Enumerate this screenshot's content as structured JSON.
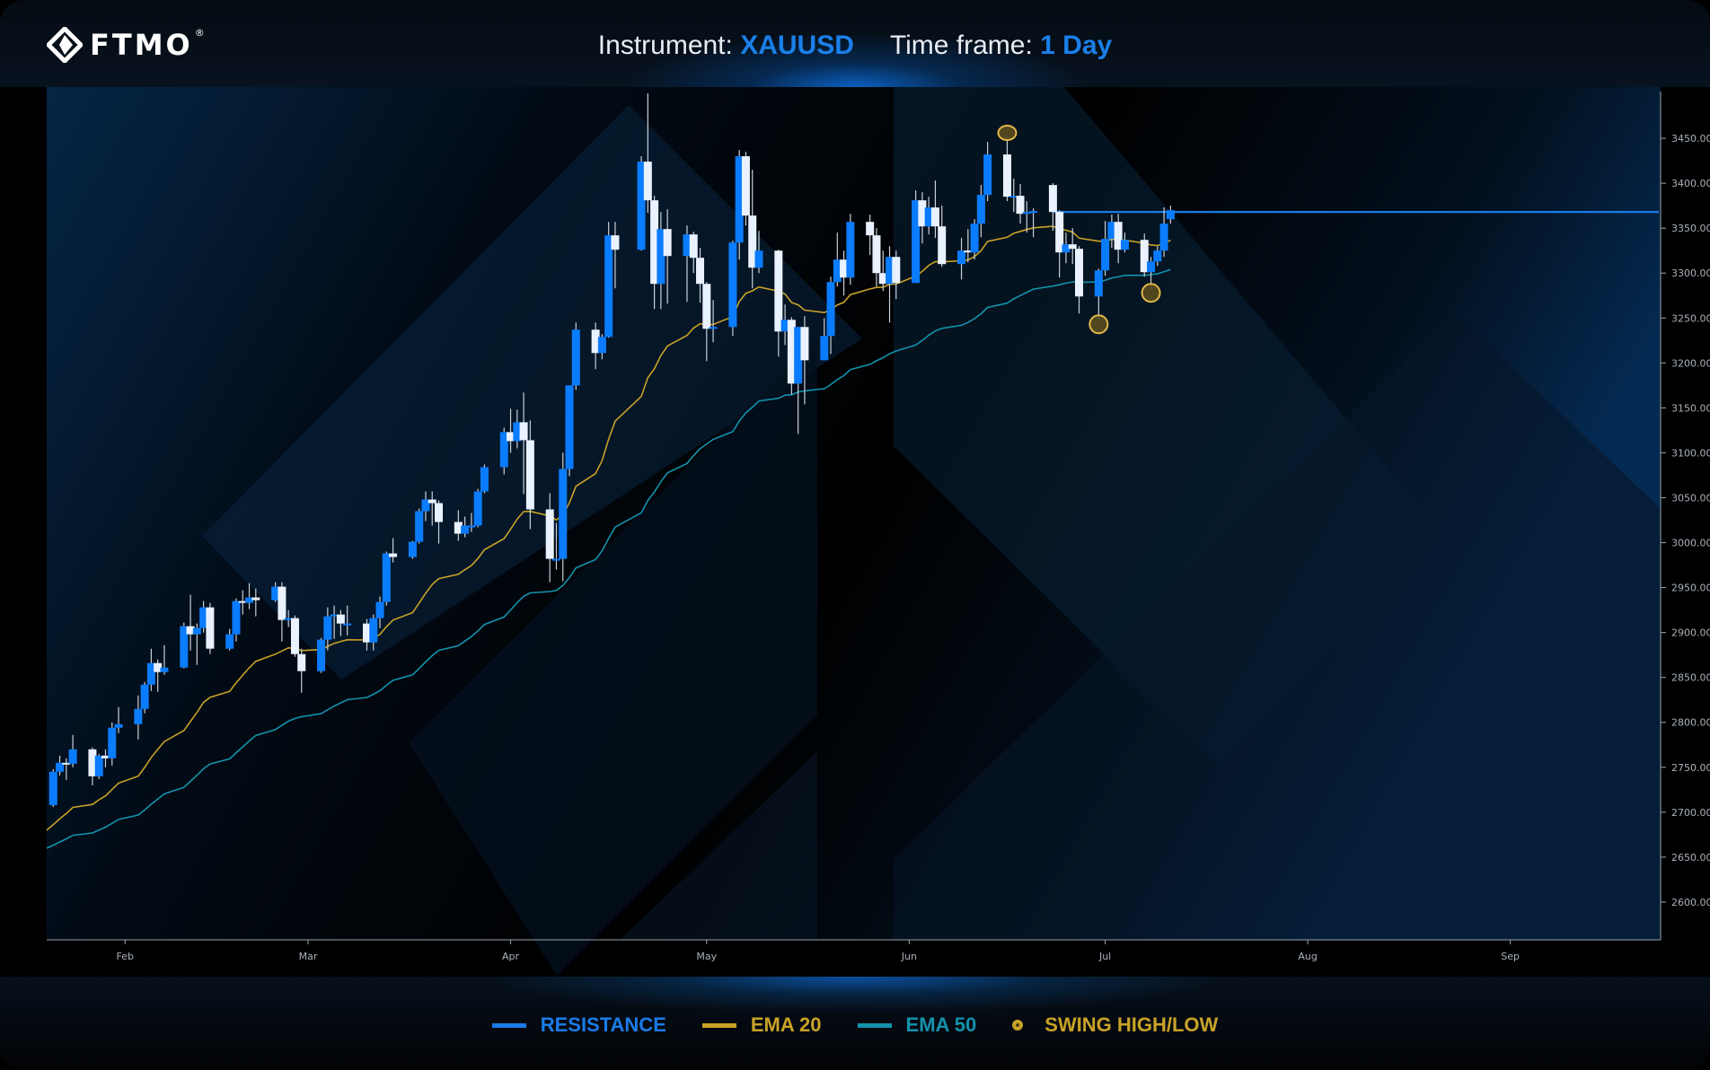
{
  "header": {
    "logo": "FTMO",
    "instrument_label": "Instrument: ",
    "instrument_value": "XAUUSD",
    "timeframe_label": "Time frame: ",
    "timeframe_value": "1 Day"
  },
  "legend": [
    {
      "label": "RESISTANCE",
      "color": "#1a7be8",
      "icon": "line"
    },
    {
      "label": "EMA 20",
      "color": "#c9a227",
      "icon": "line"
    },
    {
      "label": "EMA 50",
      "color": "#1392ad",
      "icon": "line"
    },
    {
      "label": "SWING HIGH/LOW",
      "color": "#c9a227",
      "icon": "circle"
    }
  ],
  "chart_data": {
    "type": "candlestick",
    "instrument": "XAUUSD",
    "timeframe": "1 Day",
    "xlim": [
      "2025-01-20",
      "2025-09-24"
    ],
    "ylim": [
      2558,
      3507
    ],
    "grid": false,
    "x_ticks": [
      {
        "label": "Feb",
        "date": "2025-02-01"
      },
      {
        "label": "Mar",
        "date": "2025-03-01"
      },
      {
        "label": "Apr",
        "date": "2025-04-01"
      },
      {
        "label": "May",
        "date": "2025-05-01"
      },
      {
        "label": "Jun",
        "date": "2025-06-01"
      },
      {
        "label": "Jul",
        "date": "2025-07-01"
      },
      {
        "label": "Aug",
        "date": "2025-08-01"
      },
      {
        "label": "Sep",
        "date": "2025-09-01"
      }
    ],
    "y_ticks": [
      "3450.00",
      "3400.00",
      "3350.00",
      "3300.00",
      "3250.00",
      "3200.00",
      "3150.00",
      "3100.00",
      "3050.00",
      "3000.00",
      "2950.00",
      "2900.00",
      "2850.00",
      "2800.00",
      "2750.00",
      "2700.00",
      "2650.00",
      "2600.00"
    ],
    "colors": {
      "up": "#0a7cff",
      "down": "#eaf2ff",
      "wick": "#c8d0da",
      "resistance": "#1a7be8",
      "ema20": "#c9a227",
      "ema50": "#1392ad",
      "swing": "#c9a227"
    },
    "candle_fields": [
      "date",
      "open",
      "high",
      "low",
      "close"
    ],
    "candles": [
      [
        "2025-01-21",
        2708,
        2748,
        2706,
        2745
      ],
      [
        "2025-01-22",
        2745,
        2763,
        2741,
        2755
      ],
      [
        "2025-01-23",
        2755,
        2760,
        2736,
        2754
      ],
      [
        "2025-01-24",
        2754,
        2786,
        2750,
        2770
      ],
      [
        "2025-01-27",
        2770,
        2772,
        2730,
        2740
      ],
      [
        "2025-01-28",
        2740,
        2765,
        2737,
        2763
      ],
      [
        "2025-01-29",
        2763,
        2770,
        2750,
        2760
      ],
      [
        "2025-01-30",
        2760,
        2800,
        2752,
        2794
      ],
      [
        "2025-01-31",
        2794,
        2817,
        2788,
        2798
      ],
      [
        "2025-02-03",
        2798,
        2830,
        2781,
        2815
      ],
      [
        "2025-02-04",
        2815,
        2845,
        2810,
        2842
      ],
      [
        "2025-02-05",
        2842,
        2882,
        2835,
        2866
      ],
      [
        "2025-02-06",
        2866,
        2870,
        2834,
        2856
      ],
      [
        "2025-02-07",
        2856,
        2886,
        2853,
        2861
      ],
      [
        "2025-02-10",
        2861,
        2911,
        2860,
        2907
      ],
      [
        "2025-02-11",
        2907,
        2942,
        2880,
        2898
      ],
      [
        "2025-02-12",
        2898,
        2910,
        2864,
        2905
      ],
      [
        "2025-02-13",
        2905,
        2935,
        2900,
        2928
      ],
      [
        "2025-02-14",
        2928,
        2933,
        2876,
        2882
      ],
      [
        "2025-02-17",
        2882,
        2904,
        2880,
        2898
      ],
      [
        "2025-02-18",
        2898,
        2938,
        2890,
        2935
      ],
      [
        "2025-02-19",
        2935,
        2947,
        2920,
        2933
      ],
      [
        "2025-02-20",
        2933,
        2955,
        2926,
        2939
      ],
      [
        "2025-02-21",
        2939,
        2949,
        2918,
        2936
      ],
      [
        "2025-02-24",
        2936,
        2956,
        2934,
        2951
      ],
      [
        "2025-02-25",
        2951,
        2956,
        2890,
        2914
      ],
      [
        "2025-02-26",
        2914,
        2925,
        2906,
        2916
      ],
      [
        "2025-02-27",
        2916,
        2919,
        2873,
        2876
      ],
      [
        "2025-02-28",
        2876,
        2882,
        2833,
        2857
      ],
      [
        "2025-03-03",
        2857,
        2894,
        2855,
        2892
      ],
      [
        "2025-03-04",
        2892,
        2928,
        2880,
        2918
      ],
      [
        "2025-03-05",
        2918,
        2930,
        2893,
        2920
      ],
      [
        "2025-03-06",
        2920,
        2925,
        2896,
        2910
      ],
      [
        "2025-03-07",
        2910,
        2930,
        2897,
        2910
      ],
      [
        "2025-03-10",
        2910,
        2915,
        2880,
        2889
      ],
      [
        "2025-03-11",
        2889,
        2920,
        2880,
        2916
      ],
      [
        "2025-03-12",
        2916,
        2940,
        2905,
        2934
      ],
      [
        "2025-03-13",
        2934,
        2990,
        2930,
        2988
      ],
      [
        "2025-03-14",
        2988,
        3005,
        2978,
        2984
      ],
      [
        "2025-03-17",
        2984,
        3002,
        2982,
        3001
      ],
      [
        "2025-03-18",
        3001,
        3038,
        2999,
        3035
      ],
      [
        "2025-03-19",
        3035,
        3057,
        3024,
        3048
      ],
      [
        "2025-03-20",
        3048,
        3057,
        3019,
        3044
      ],
      [
        "2025-03-21",
        3044,
        3047,
        2999,
        3023
      ],
      [
        "2025-03-24",
        3023,
        3036,
        3002,
        3010
      ],
      [
        "2025-03-25",
        3010,
        3029,
        3006,
        3019
      ],
      [
        "2025-03-26",
        3019,
        3033,
        3012,
        3019
      ],
      [
        "2025-03-27",
        3019,
        3060,
        3017,
        3057
      ],
      [
        "2025-03-28",
        3057,
        3087,
        3055,
        3084
      ],
      [
        "2025-03-31",
        3084,
        3128,
        3076,
        3123
      ],
      [
        "2025-04-01",
        3123,
        3149,
        3100,
        3113
      ],
      [
        "2025-04-02",
        3113,
        3148,
        3105,
        3134
      ],
      [
        "2025-04-03",
        3134,
        3167,
        3054,
        3114
      ],
      [
        "2025-04-04",
        3114,
        3136,
        3015,
        3037
      ],
      [
        "2025-04-07",
        3037,
        3055,
        2956,
        2982
      ],
      [
        "2025-04-08",
        2982,
        3022,
        2970,
        2982
      ],
      [
        "2025-04-09",
        2982,
        3100,
        2957,
        3082
      ],
      [
        "2025-04-10",
        3082,
        3175,
        3074,
        3175
      ],
      [
        "2025-04-11",
        3175,
        3245,
        3170,
        3237
      ],
      [
        "2025-04-14",
        3237,
        3245,
        3193,
        3211
      ],
      [
        "2025-04-15",
        3211,
        3232,
        3204,
        3229
      ],
      [
        "2025-04-16",
        3229,
        3357,
        3228,
        3342
      ],
      [
        "2025-04-17",
        3342,
        3357,
        3283,
        3326
      ],
      [
        "2025-04-21",
        3326,
        3430,
        3325,
        3424
      ],
      [
        "2025-04-22",
        3424,
        3500,
        3367,
        3381
      ],
      [
        "2025-04-23",
        3381,
        3386,
        3260,
        3288
      ],
      [
        "2025-04-24",
        3288,
        3368,
        3260,
        3349
      ],
      [
        "2025-04-25",
        3349,
        3371,
        3266,
        3319
      ],
      [
        "2025-04-28",
        3319,
        3353,
        3268,
        3343
      ],
      [
        "2025-04-29",
        3343,
        3346,
        3300,
        3317
      ],
      [
        "2025-04-30",
        3317,
        3328,
        3267,
        3288
      ],
      [
        "2025-05-01",
        3288,
        3290,
        3202,
        3238
      ],
      [
        "2025-05-02",
        3238,
        3270,
        3223,
        3240
      ],
      [
        "2025-05-05",
        3240,
        3336,
        3230,
        3334
      ],
      [
        "2025-05-06",
        3334,
        3437,
        3315,
        3430
      ],
      [
        "2025-05-07",
        3430,
        3435,
        3353,
        3364
      ],
      [
        "2025-05-08",
        3364,
        3415,
        3283,
        3306
      ],
      [
        "2025-05-09",
        3306,
        3347,
        3300,
        3325
      ],
      [
        "2025-05-12",
        3325,
        3326,
        3207,
        3235
      ],
      [
        "2025-05-13",
        3235,
        3265,
        3220,
        3248
      ],
      [
        "2025-05-14",
        3248,
        3251,
        3165,
        3177
      ],
      [
        "2025-05-15",
        3177,
        3240,
        3121,
        3240
      ],
      [
        "2025-05-16",
        3240,
        3252,
        3154,
        3203
      ],
      [
        "2025-05-19",
        3203,
        3250,
        3205,
        3230
      ],
      [
        "2025-05-20",
        3230,
        3296,
        3210,
        3290
      ],
      [
        "2025-05-21",
        3290,
        3345,
        3285,
        3315
      ],
      [
        "2025-05-22",
        3315,
        3325,
        3275,
        3295
      ],
      [
        "2025-05-23",
        3295,
        3366,
        3287,
        3357
      ],
      [
        "2025-05-26",
        3357,
        3365,
        3320,
        3342
      ],
      [
        "2025-05-27",
        3342,
        3350,
        3285,
        3300
      ],
      [
        "2025-05-28",
        3300,
        3325,
        3280,
        3288
      ],
      [
        "2025-05-29",
        3288,
        3330,
        3245,
        3318
      ],
      [
        "2025-05-30",
        3318,
        3325,
        3271,
        3289
      ],
      [
        "2025-06-02",
        3289,
        3392,
        3289,
        3381
      ],
      [
        "2025-06-03",
        3381,
        3390,
        3333,
        3352
      ],
      [
        "2025-06-04",
        3352,
        3385,
        3343,
        3373
      ],
      [
        "2025-06-05",
        3373,
        3403,
        3339,
        3352
      ],
      [
        "2025-06-06",
        3352,
        3375,
        3307,
        3310
      ],
      [
        "2025-06-09",
        3310,
        3339,
        3293,
        3325
      ],
      [
        "2025-06-10",
        3325,
        3349,
        3312,
        3323
      ],
      [
        "2025-06-11",
        3323,
        3360,
        3315,
        3355
      ],
      [
        "2025-06-12",
        3355,
        3398,
        3340,
        3387
      ],
      [
        "2025-06-13",
        3387,
        3446,
        3380,
        3432
      ],
      [
        "2025-06-16",
        3432,
        3452,
        3380,
        3385
      ],
      [
        "2025-06-17",
        3385,
        3405,
        3368,
        3386
      ],
      [
        "2025-06-18",
        3386,
        3399,
        3355,
        3366
      ],
      [
        "2025-06-19",
        3366,
        3380,
        3345,
        3368
      ],
      [
        "2025-06-20",
        3368,
        3372,
        3340,
        3369
      ],
      [
        "2025-06-23",
        3398,
        3400,
        3347,
        3368
      ],
      [
        "2025-06-24",
        3368,
        3370,
        3295,
        3323
      ],
      [
        "2025-06-25",
        3323,
        3345,
        3311,
        3332
      ],
      [
        "2025-06-26",
        3332,
        3350,
        3310,
        3327
      ],
      [
        "2025-06-27",
        3327,
        3330,
        3255,
        3274
      ],
      [
        "2025-06-30",
        3274,
        3305,
        3247,
        3303
      ],
      [
        "2025-07-01",
        3303,
        3358,
        3297,
        3338
      ],
      [
        "2025-07-02",
        3338,
        3365,
        3328,
        3357
      ],
      [
        "2025-07-03",
        3357,
        3366,
        3311,
        3326
      ],
      [
        "2025-07-04",
        3326,
        3345,
        3323,
        3337
      ],
      [
        "2025-07-07",
        3337,
        3344,
        3296,
        3301
      ],
      [
        "2025-07-08",
        3301,
        3318,
        3282,
        3313
      ],
      [
        "2025-07-09",
        3313,
        3330,
        3308,
        3325
      ],
      [
        "2025-07-10",
        3325,
        3373,
        3318,
        3355
      ],
      [
        "2025-07-11",
        3360,
        3375,
        3355,
        3370
      ]
    ],
    "ema20_start": 2680,
    "ema50_start": 2660,
    "resistance": {
      "price": 3368,
      "from": "2025-06-23"
    },
    "swing_points": [
      {
        "type": "high",
        "date": "2025-06-16",
        "price": 3452
      },
      {
        "type": "low",
        "date": "2025-06-30",
        "price": 3247
      },
      {
        "type": "low",
        "date": "2025-07-08",
        "price": 3282
      }
    ]
  }
}
